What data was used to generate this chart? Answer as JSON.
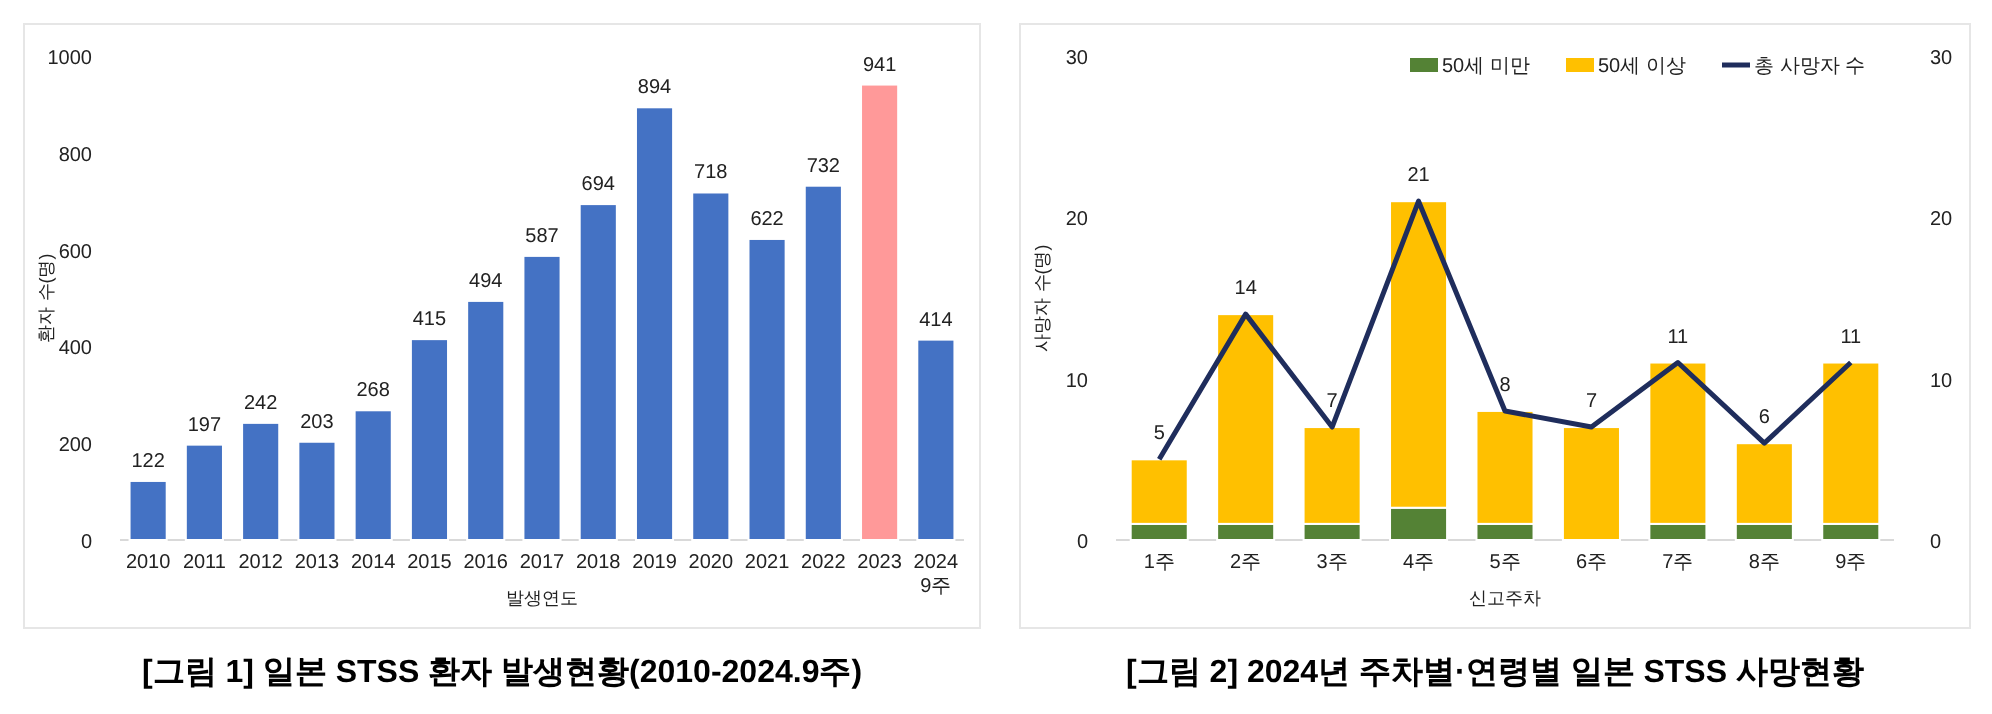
{
  "chart_data": [
    {
      "type": "bar",
      "title": "[그림 1] 일본 STSS 환자 발생현황(2010-2024.9주)",
      "xlabel": "발생연도",
      "ylabel": "환자 수(명)",
      "categories": [
        "2010",
        "2011",
        "2012",
        "2013",
        "2014",
        "2015",
        "2016",
        "2017",
        "2018",
        "2019",
        "2020",
        "2021",
        "2022",
        "2023",
        "2024\n9주"
      ],
      "values": [
        122,
        197,
        242,
        203,
        268,
        415,
        494,
        587,
        694,
        894,
        718,
        622,
        732,
        941,
        414
      ],
      "colors": [
        "#4472c4",
        "#4472c4",
        "#4472c4",
        "#4472c4",
        "#4472c4",
        "#4472c4",
        "#4472c4",
        "#4472c4",
        "#4472c4",
        "#4472c4",
        "#4472c4",
        "#4472c4",
        "#4472c4",
        "#ff9999",
        "#4472c4"
      ],
      "ylim": [
        0,
        1000
      ],
      "yticks": [
        0,
        200,
        400,
        600,
        800,
        1000
      ],
      "data_labels": true,
      "grid": false,
      "legend": false
    },
    {
      "type": "bar",
      "title": "[그림 2] 2024년 주차별·연령별 일본 STSS 사망현황",
      "xlabel": "신고주차",
      "ylabel": "사망자 수(명)",
      "stacked": true,
      "categories": [
        "1주",
        "2주",
        "3주",
        "4주",
        "5주",
        "6주",
        "7주",
        "8주",
        "9주"
      ],
      "series": [
        {
          "name": "50세 미만",
          "color": "#548235",
          "values": [
            1,
            1,
            1,
            2,
            1,
            0,
            1,
            1,
            1
          ]
        },
        {
          "name": "50세 이상",
          "color": "#ffc000",
          "values": [
            4,
            13,
            6,
            19,
            7,
            7,
            10,
            5,
            10
          ]
        },
        {
          "name": "총 사망자 수",
          "type": "line",
          "color": "#1f2d5c",
          "values": [
            5,
            14,
            7,
            21,
            8,
            7,
            11,
            6,
            11
          ],
          "value_labels": [
            "5",
            "14",
            "7",
            "21",
            "8",
            "7",
            "11",
            "6",
            "11"
          ]
        }
      ],
      "ylim": [
        0,
        30
      ],
      "yticks": [
        0,
        10,
        20,
        30
      ],
      "y2lim": [
        0,
        30
      ],
      "y2ticks": [
        0,
        10,
        20,
        30
      ],
      "grid": false,
      "legend": "top right",
      "marker": "none",
      "line_style": "solid"
    }
  ]
}
